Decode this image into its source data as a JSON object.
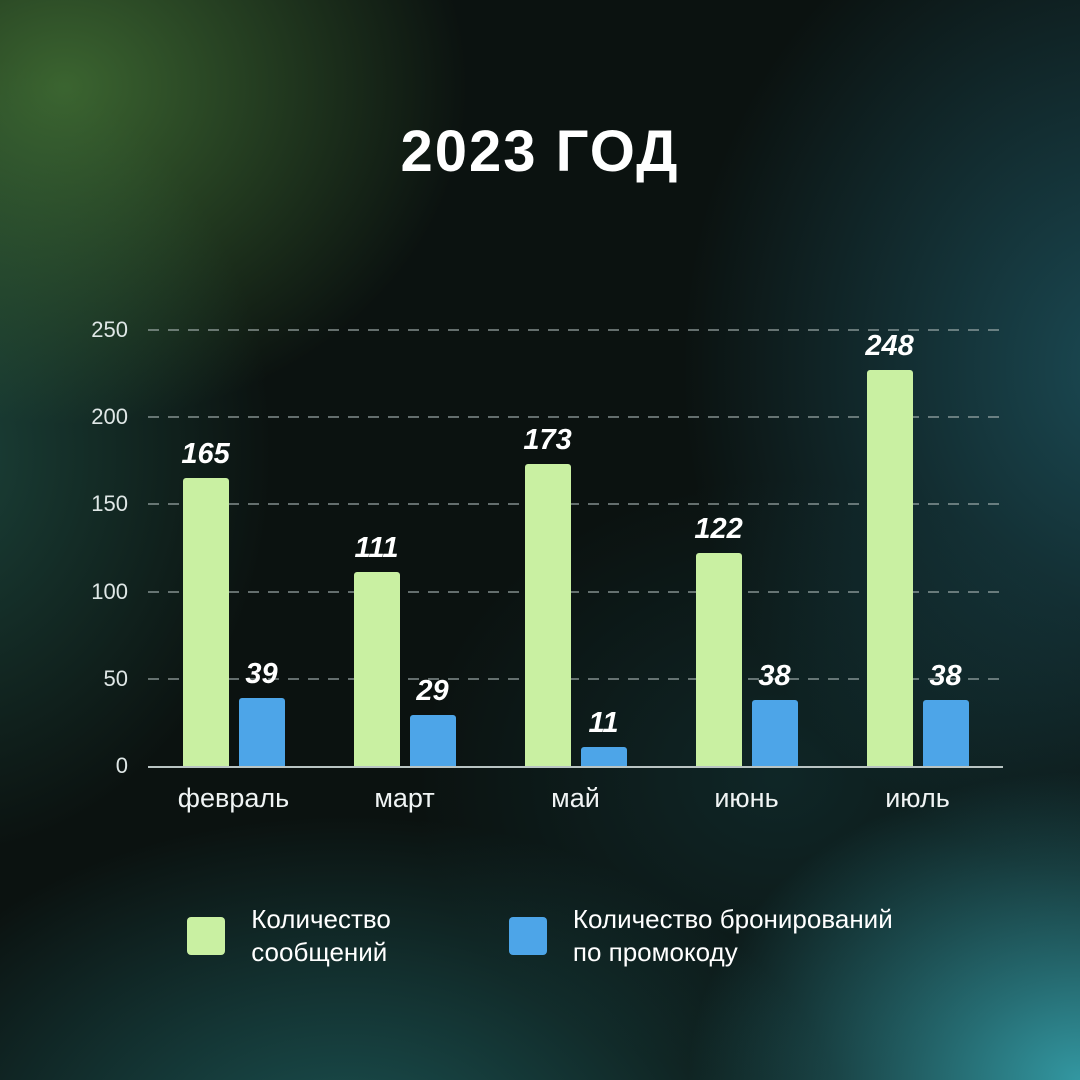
{
  "title": "2023 ГОД",
  "chart_data": {
    "type": "bar",
    "title": "2023 ГОД",
    "categories": [
      "февраль",
      "март",
      "май",
      "июнь",
      "июль"
    ],
    "series": [
      {
        "name": "Количество сообщений",
        "color": "#c9f0a2",
        "values": [
          165,
          111,
          173,
          122,
          248
        ]
      },
      {
        "name": "Количество бронирований по промокоду",
        "color": "#4da5e8",
        "values": [
          39,
          29,
          11,
          38,
          38
        ]
      }
    ],
    "ylim": [
      0,
      250
    ],
    "yticks": [
      0,
      50,
      100,
      150,
      200,
      250
    ],
    "grid": "horizontal-dashed",
    "legend_position": "bottom",
    "value_labels": "above-bars"
  },
  "legend": {
    "items": [
      {
        "line1": "Количество",
        "line2": "сообщений"
      },
      {
        "line1": "Количество бронирований",
        "line2": "по промокоду"
      }
    ]
  }
}
